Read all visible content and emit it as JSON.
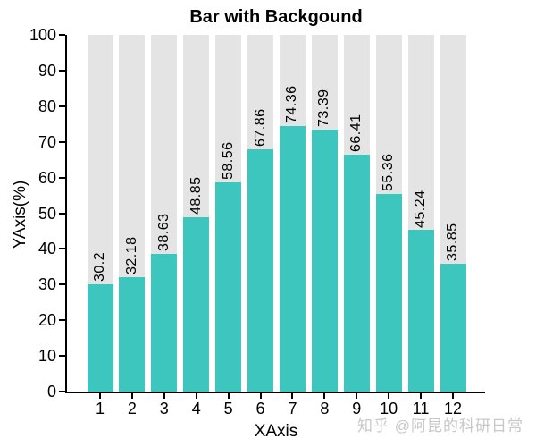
{
  "chart_data": {
    "type": "bar",
    "title": "Bar with Backgound",
    "xlabel": "XAxis",
    "ylabel": "YAxis(%)",
    "categories": [
      "1",
      "2",
      "3",
      "4",
      "5",
      "6",
      "7",
      "8",
      "9",
      "10",
      "11",
      "12"
    ],
    "values": [
      30.2,
      32.18,
      38.63,
      48.85,
      58.56,
      67.86,
      74.36,
      73.39,
      66.41,
      55.36,
      45.24,
      35.85
    ],
    "ylim": [
      0,
      100
    ],
    "yticks": [
      0,
      10,
      20,
      30,
      40,
      50,
      60,
      70,
      80,
      90,
      100
    ],
    "bar_color": "#3dc6bd",
    "background_bar_color": "#e4e4e4",
    "axis_color": "#000000",
    "grid": false,
    "legend_position": "none",
    "value_labels_rotation_deg": 90
  },
  "watermark": {
    "text": "知乎 @阿昆的科研日常",
    "color": "#c8c8c8"
  }
}
